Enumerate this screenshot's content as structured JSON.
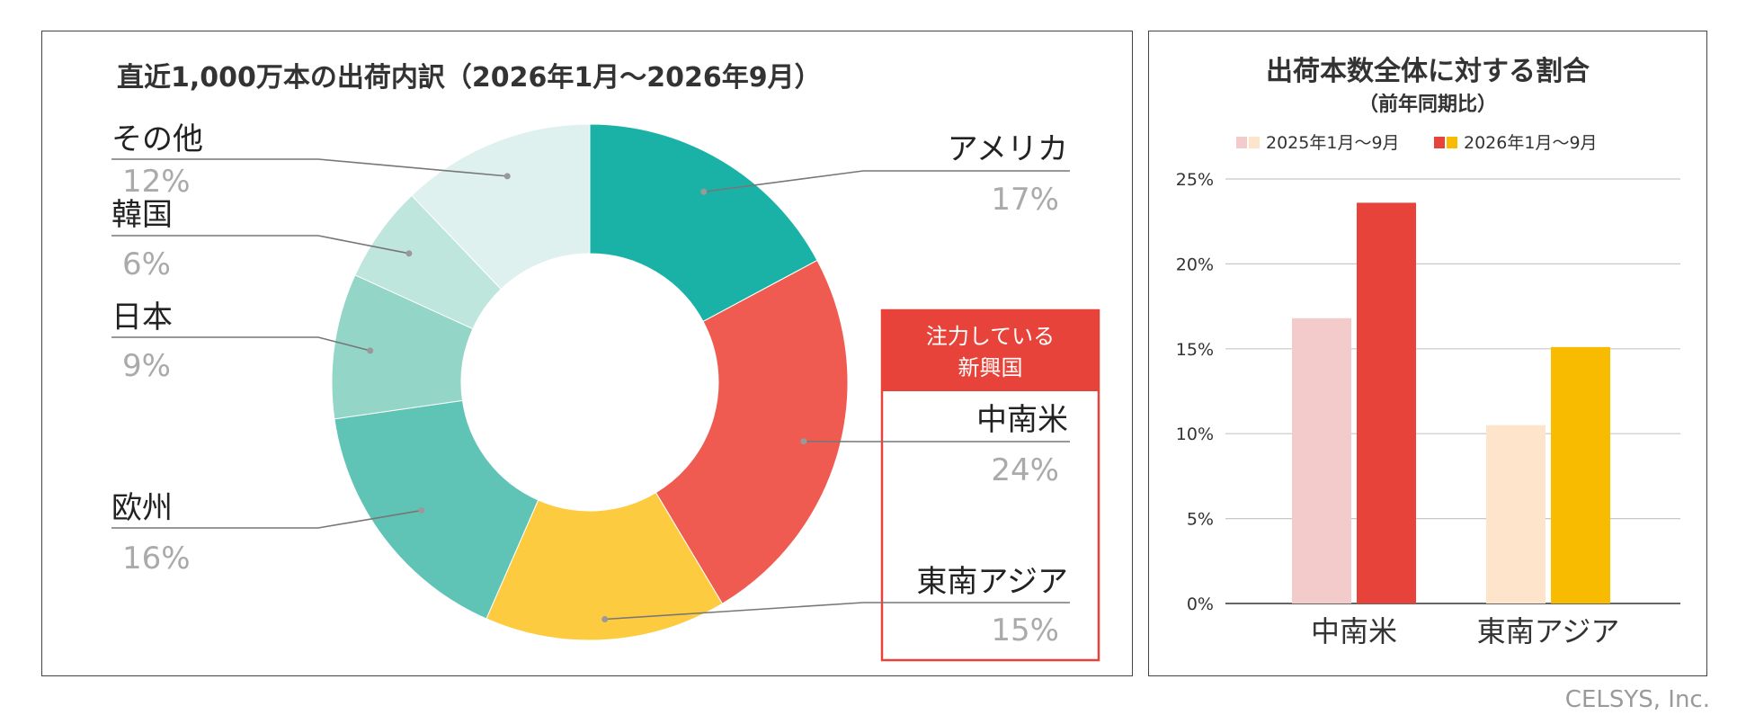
{
  "credit": "CELSYS, Inc.",
  "chart_data": [
    {
      "type": "pie",
      "title": "直近1,000万本の出荷内訳（2026年1月～2026年9月）",
      "highlight_label": [
        "注力している",
        "新興国"
      ],
      "slices": [
        {
          "label": "アメリカ",
          "value": 17,
          "pct": "17%",
          "color": "#1ab2a6"
        },
        {
          "label": "中南米",
          "value": 24,
          "pct": "24%",
          "color": "#ef5b50"
        },
        {
          "label": "東南アジア",
          "value": 15,
          "pct": "15%",
          "color": "#fccb3f"
        },
        {
          "label": "欧州",
          "value": 16,
          "pct": "16%",
          "color": "#5fc3b6"
        },
        {
          "label": "日本",
          "value": 9,
          "pct": "9%",
          "color": "#93d5c7"
        },
        {
          "label": "韓国",
          "value": 6,
          "pct": "6%",
          "color": "#bfe6dd"
        },
        {
          "label": "その他",
          "value": 12,
          "pct": "12%",
          "color": "#dff1ee"
        }
      ],
      "highlight_color": "#e8433a"
    },
    {
      "type": "bar",
      "title": "出荷本数全体に対する割合",
      "subtitle": "（前年同期比）",
      "categories": [
        "中南米",
        "東南アジア"
      ],
      "series": [
        {
          "name": "2025年1月～9月",
          "values": [
            16.8,
            10.5
          ],
          "colors": [
            "#f4cbcb",
            "#fde4cb"
          ]
        },
        {
          "name": "2026年1月～9月",
          "values": [
            23.6,
            15.1
          ],
          "colors": [
            "#e8433a",
            "#f9bb00"
          ]
        }
      ],
      "ylim": [
        0,
        25
      ],
      "yticks": [
        "0%",
        "5%",
        "10%",
        "15%",
        "20%",
        "25%"
      ],
      "grid": true,
      "legend": "top"
    }
  ]
}
